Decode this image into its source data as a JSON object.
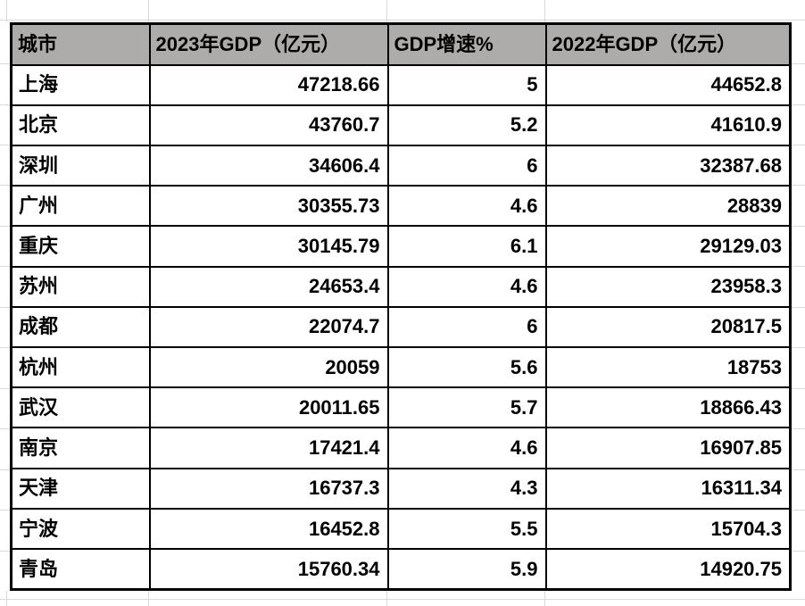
{
  "app": {
    "kind": "spreadsheet-table",
    "title": "城市GDP对照表"
  },
  "colors": {
    "header_background": "#aeabab",
    "table_border": "#000000",
    "grid_line": "#d9d9d9",
    "text": "#000000"
  },
  "table": {
    "columns": [
      "城市",
      "2023年GDP（亿元）",
      "GDP增速%",
      "2022年GDP（亿元）"
    ],
    "rows": [
      [
        "上海",
        "47218.66",
        "5",
        "44652.8"
      ],
      [
        "北京",
        "43760.7",
        "5.2",
        "41610.9"
      ],
      [
        "深圳",
        "34606.4",
        "6",
        "32387.68"
      ],
      [
        "广州",
        "30355.73",
        "4.6",
        "28839"
      ],
      [
        "重庆",
        "30145.79",
        "6.1",
        "29129.03"
      ],
      [
        "苏州",
        "24653.4",
        "4.6",
        "23958.3"
      ],
      [
        "成都",
        "22074.7",
        "6",
        "20817.5"
      ],
      [
        "杭州",
        "20059",
        "5.6",
        "18753"
      ],
      [
        "武汉",
        "20011.65",
        "5.7",
        "18866.43"
      ],
      [
        "南京",
        "17421.4",
        "4.6",
        "16907.85"
      ],
      [
        "天津",
        "16737.3",
        "4.3",
        "16311.34"
      ],
      [
        "宁波",
        "16452.8",
        "5.5",
        "15704.3"
      ],
      [
        "青岛",
        "15760.34",
        "5.9",
        "14920.75"
      ]
    ]
  }
}
